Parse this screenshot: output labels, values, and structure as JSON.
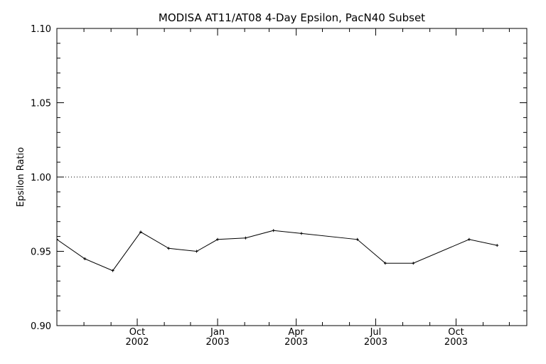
{
  "chart_data": {
    "type": "line",
    "title": "MODISA AT11/AT08 4-Day Epsilon, PacN40 Subset",
    "xlabel": "",
    "ylabel": "Epsilon Ratio",
    "xlim": [
      "2002-07-01",
      "2003-12-21"
    ],
    "ylim": [
      0.9,
      1.1
    ],
    "yticks": [
      0.9,
      0.95,
      1.0,
      1.05,
      1.1
    ],
    "ytick_labels": [
      "0.90",
      "0.95",
      "1.00",
      "1.05",
      "1.10"
    ],
    "xticks": [
      {
        "date": "2002-10-01",
        "month": "Oct",
        "year": "2002"
      },
      {
        "date": "2003-01-01",
        "month": "Jan",
        "year": "2003"
      },
      {
        "date": "2003-04-01",
        "month": "Apr",
        "year": "2003"
      },
      {
        "date": "2003-07-01",
        "month": "Jul",
        "year": "2003"
      },
      {
        "date": "2003-10-01",
        "month": "Oct",
        "year": "2003"
      }
    ],
    "reference_line": {
      "y": 1.0,
      "style": "dotted"
    },
    "grid": false,
    "series": [
      {
        "x": [
          "2002-07-01",
          "2002-08-02",
          "2002-09-03",
          "2002-10-05",
          "2002-11-06",
          "2002-12-08",
          "2003-01-01",
          "2003-02-02",
          "2003-03-06",
          "2003-04-07",
          "2003-06-10",
          "2003-07-12",
          "2003-08-13",
          "2003-10-16",
          "2003-11-17"
        ],
        "y": [
          0.958,
          0.945,
          0.937,
          0.963,
          0.952,
          0.95,
          0.958,
          0.959,
          0.964,
          0.962,
          0.958,
          0.942,
          0.942,
          0.958,
          0.954
        ]
      }
    ]
  }
}
